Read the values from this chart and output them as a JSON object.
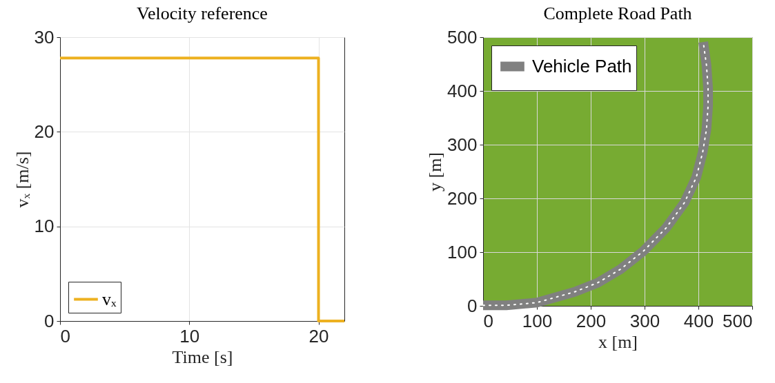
{
  "chart_data": [
    {
      "type": "line",
      "title": "Velocity reference",
      "xlabel": "Time [s]",
      "ylabel": "vₓ [m/s]",
      "x": [
        0,
        20,
        20,
        22
      ],
      "series": [
        {
          "name": "vₓ",
          "color": "#edb120",
          "values": [
            27.8,
            27.8,
            0,
            0
          ]
        }
      ],
      "xlim": [
        0,
        22
      ],
      "ylim": [
        0,
        30
      ],
      "xticks": [
        0,
        10,
        20
      ],
      "yticks": [
        0,
        10,
        20,
        30
      ],
      "grid": true,
      "legend": "bottom left"
    },
    {
      "type": "line",
      "title": "Complete Road Path",
      "xlabel": "x [m]",
      "ylabel": "y [m]",
      "x": [
        0,
        43,
        100,
        170,
        213,
        255,
        298,
        340,
        374,
        396,
        408,
        415,
        418,
        418,
        415,
        409
      ],
      "series": [
        {
          "name": "Vehicle Path",
          "color": "#808080",
          "values": [
            1,
            1,
            6,
            26,
            43,
            68,
            102,
            145,
            192,
            239,
            286,
            329,
            372,
            405,
            448,
            491
          ]
        }
      ],
      "xlim": [
        0,
        500
      ],
      "ylim": [
        0,
        500
      ],
      "xticks": [
        0,
        100,
        200,
        300,
        400,
        500
      ],
      "yticks": [
        0,
        100,
        200,
        300,
        400,
        500
      ],
      "grid": true,
      "legend": "top left"
    }
  ]
}
